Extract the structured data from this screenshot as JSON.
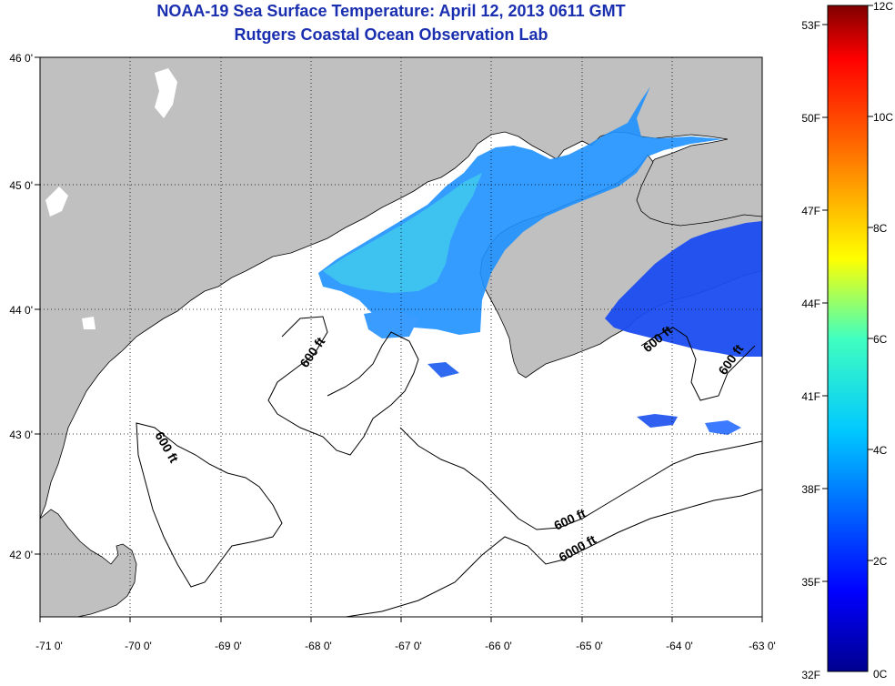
{
  "title": "NOAA-19 Sea Surface Temperature:  April 12, 2013 0611 GMT",
  "subtitle": "Rutgers Coastal Ocean Observation Lab",
  "map": {
    "lon_ticks": [
      "-71 0'",
      "-70 0'",
      "-69 0'",
      "-68 0'",
      "-67 0'",
      "-66 0'",
      "-65 0'",
      "-64 0'",
      "-63 0'"
    ],
    "lat_ticks": [
      "46 0'",
      "45 0'",
      "44 0'",
      "43 0'",
      "42 0'"
    ],
    "lon_range": [
      -71,
      -63
    ],
    "lat_range": [
      41.5,
      46
    ],
    "grid": "dotted",
    "contour_labels": [
      "600 ft",
      "600 ft",
      "600 ft",
      "600 ft",
      "600 ft",
      "6000 ft"
    ],
    "land_color": "#c0c0c0",
    "cloud_color": "#ffffff"
  },
  "colorbar": {
    "fahrenheit_labels": [
      "53F",
      "50F",
      "47F",
      "44F",
      "41F",
      "38F",
      "35F",
      "32F"
    ],
    "celsius_labels": [
      "12C",
      "10C",
      "8C",
      "6C",
      "4C",
      "2C",
      "0C"
    ],
    "range_celsius": [
      0,
      12
    ],
    "colors": [
      "#00008f",
      "#0000ff",
      "#0080ff",
      "#00ffff",
      "#80ff80",
      "#ffff00",
      "#ff8000",
      "#ff0000",
      "#800000"
    ]
  }
}
